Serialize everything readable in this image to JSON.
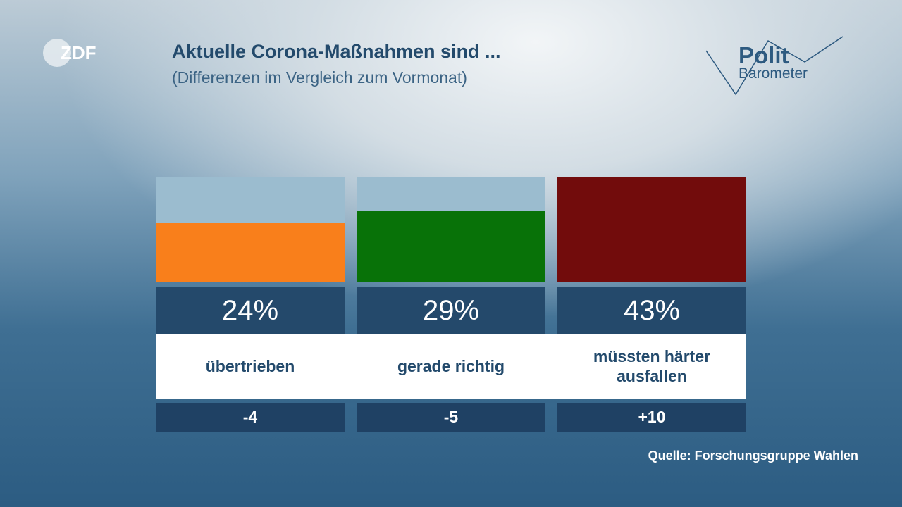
{
  "header": {
    "title": "Aktuelle Corona-Maßnahmen sind ...",
    "subtitle": "(Differenzen im Vergleich zum Vormonat)"
  },
  "logos": {
    "broadcaster": "ZDF",
    "program_line1": "Polit",
    "program_line2": "Barometer"
  },
  "chart_data": {
    "type": "bar",
    "title": "Aktuelle Corona-Maßnahmen sind ...",
    "subtitle": "(Differenzen im Vergleich zum Vormonat)",
    "categories": [
      "übertrieben",
      "gerade richtig",
      "müssten härter ausfallen"
    ],
    "values": [
      24,
      29,
      43
    ],
    "value_labels": [
      "24%",
      "29%",
      "43%"
    ],
    "differences": [
      "-4",
      "-5",
      "+10"
    ],
    "colors": [
      "#f97f1b",
      "#087208",
      "#720c0c"
    ],
    "background_bar_color": "#9bbccf",
    "ylim": [
      0,
      43
    ],
    "grid": false,
    "legend": "none"
  },
  "footer": {
    "source": "Quelle: Forschungsgruppe Wahlen"
  }
}
